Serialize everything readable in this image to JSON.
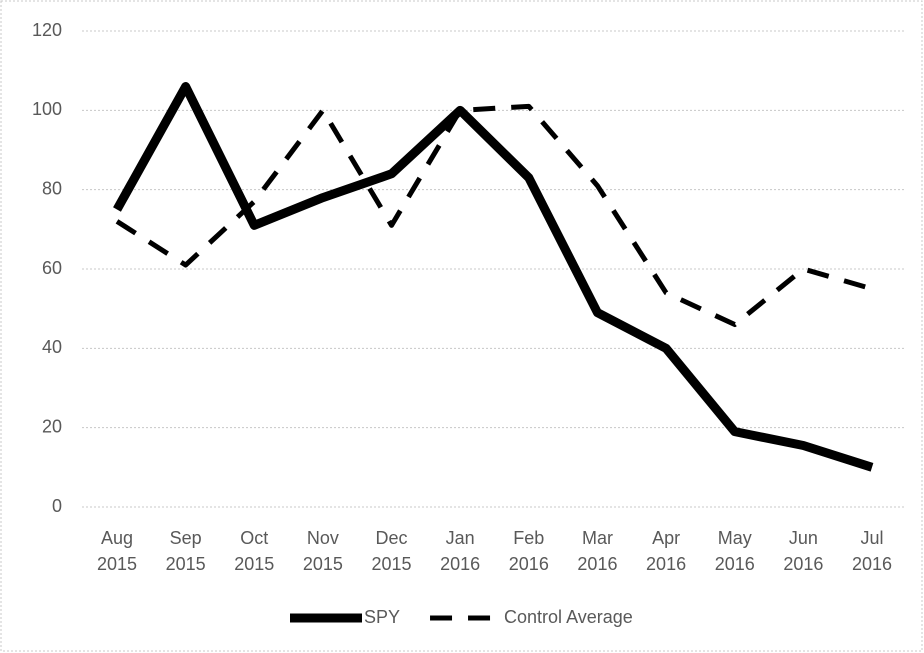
{
  "chart_data": {
    "type": "line",
    "categories": [
      "Aug\n2015",
      "Sep\n2015",
      "Oct\n2015",
      "Nov\n2015",
      "Dec\n2015",
      "Jan\n2016",
      "Feb\n2016",
      "Mar\n2016",
      "Apr\n2016",
      "May\n2016",
      "Jun\n2016",
      "Jul\n2016"
    ],
    "series": [
      {
        "name": "SPY",
        "color": "#000000",
        "style": "solid",
        "values": [
          75,
          106,
          71,
          78,
          84,
          100,
          83,
          49,
          40,
          19,
          15.5,
          10
        ]
      },
      {
        "name": "Control Average",
        "color": "#000000",
        "style": "dashed",
        "values": [
          72,
          61,
          77,
          100,
          71,
          100,
          101,
          81,
          54,
          46,
          60,
          55
        ]
      }
    ],
    "ylim": [
      0,
      120
    ],
    "yticks": [
      0,
      20,
      40,
      60,
      80,
      100,
      120
    ],
    "grid": true,
    "legend": "bottom"
  }
}
